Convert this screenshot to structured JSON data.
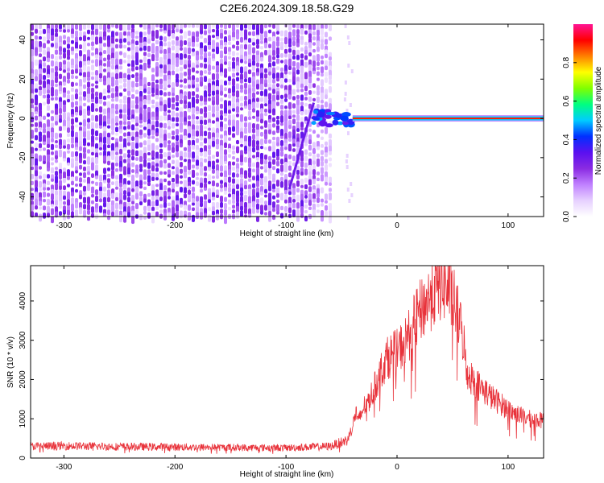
{
  "title": "C2E6.2024.309.18.58.G29",
  "chart_data": [
    {
      "type": "heatmap",
      "xlabel": "Height of straight line (km)",
      "ylabel": "Frequency (Hz)",
      "xlim": [
        -330,
        132
      ],
      "ylim": [
        -50,
        48
      ],
      "xticks": [
        -300,
        -200,
        -100,
        0,
        100
      ],
      "yticks": [
        -40,
        -20,
        0,
        20,
        40
      ],
      "grid": false,
      "colorbar": {
        "label": "Normalized spectral amplitude",
        "range": [
          0,
          1
        ],
        "ticks": [
          0.0,
          0.2,
          0.4,
          0.6,
          0.8
        ],
        "tick_labels": [
          "0.0",
          "0.2",
          "0.4",
          "0.6",
          "0.8"
        ],
        "colormap": [
          "#ffffff",
          "#e6d0ff",
          "#c080ff",
          "#8a2be2",
          "#5a10f0",
          "#0030ff",
          "#00ccff",
          "#00ff80",
          "#80ff00",
          "#ffff00",
          "#ff8000",
          "#ff0000",
          "#ff1493"
        ]
      },
      "features": {
        "noise_region_x": [
          -330,
          -60
        ],
        "noise_level": 0.25,
        "diagonal_trace": {
          "from": [
            -97,
            -36
          ],
          "to": [
            -75,
            8
          ],
          "level": 0.3
        },
        "carrier_line": {
          "y": 0,
          "from_x": -40,
          "to_x": 132,
          "level": 0.9
        },
        "transition_region_x": [
          -75,
          -40
        ]
      }
    },
    {
      "type": "line",
      "xlabel": "Height of straight line (km)",
      "ylabel": "SNR (10 * v/v)",
      "xlim": [
        -330,
        132
      ],
      "ylim": [
        0,
        4900
      ],
      "xticks": [
        -300,
        -200,
        -100,
        0,
        100
      ],
      "yticks": [
        0,
        1000,
        2000,
        3000,
        4000
      ],
      "grid": false,
      "line_color": "#e8323a",
      "series": [
        {
          "x": [
            -330,
            -300,
            -250,
            -200,
            -150,
            -100,
            -60,
            -45,
            -40,
            -37,
            -35,
            -30,
            -25,
            -20,
            -15,
            -10,
            -5,
            0,
            5,
            10,
            15,
            20,
            25,
            30,
            35,
            40,
            45,
            50,
            55,
            60,
            62,
            65,
            70,
            75,
            80,
            85,
            90,
            95,
            100,
            105,
            110,
            115,
            120,
            125,
            132
          ],
          "y": [
            300,
            310,
            290,
            280,
            270,
            260,
            300,
            450,
            800,
            1200,
            900,
            1300,
            1500,
            1800,
            2200,
            2500,
            2650,
            2700,
            2900,
            3100,
            3400,
            3700,
            3900,
            4100,
            4300,
            4450,
            4350,
            4100,
            3600,
            3000,
            2300,
            2100,
            1950,
            1800,
            1700,
            1550,
            1450,
            1350,
            1250,
            1150,
            1100,
            1050,
            1000,
            980,
            950
          ]
        }
      ]
    }
  ]
}
